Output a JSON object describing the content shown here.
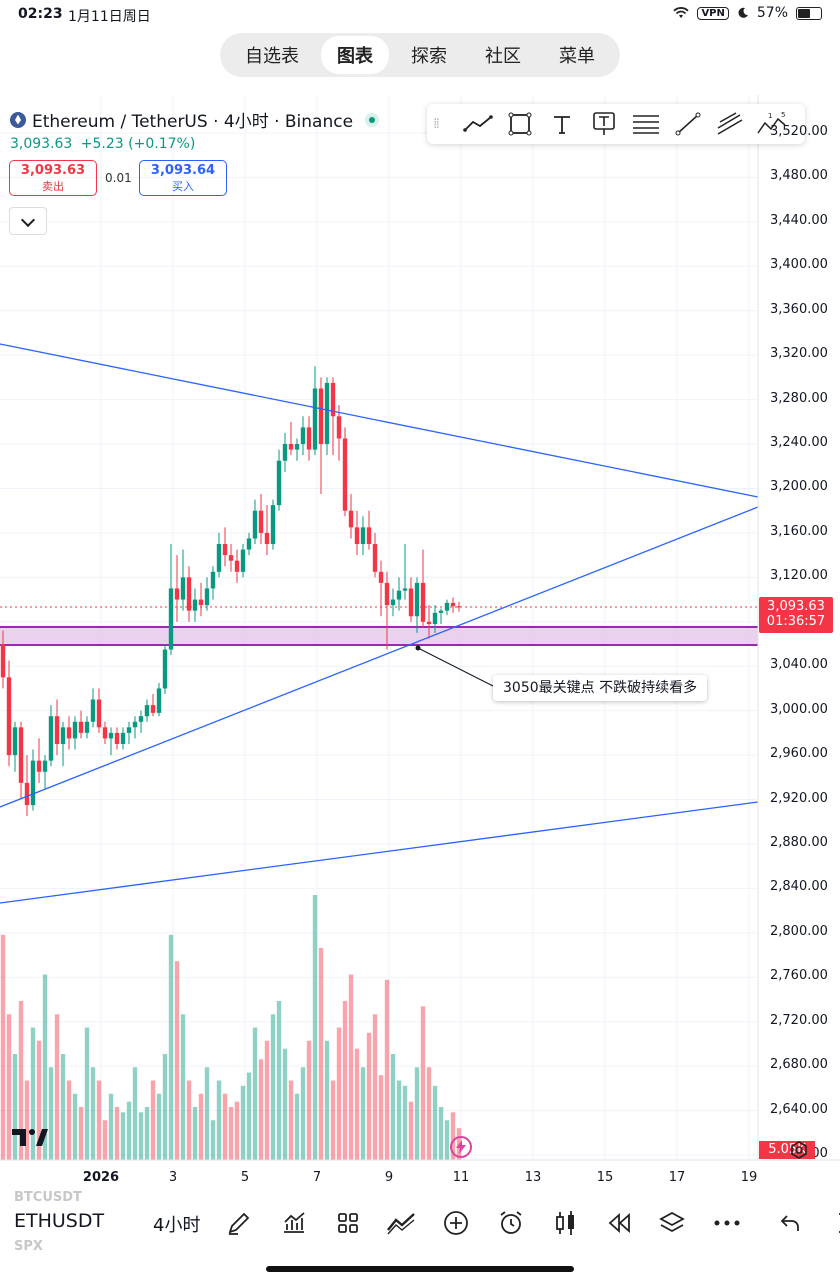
{
  "status_bar": {
    "time": "02:23",
    "date": "1月11日周日",
    "vpn": "VPN",
    "battery": "57%"
  },
  "nav_tabs": [
    "自选表",
    "图表",
    "探索",
    "社区",
    "菜单"
  ],
  "symbol": {
    "title": "Ethereum / TetherUS · 4小时 · Binance",
    "last_price": "3,093.63",
    "change": "+5.23 (+0.17%)",
    "sell_price": "3,093.63",
    "sell_label": "卖出",
    "spread": "0.01",
    "buy_price": "3,093.64",
    "buy_label": "买入"
  },
  "drawing_tools": [
    "trend-line-icon",
    "rectangle-icon",
    "text-icon",
    "note-icon",
    "horizontal-lines-icon",
    "ray-icon",
    "parallel-channel-icon",
    "elliott-wave-icon"
  ],
  "price_axis": {
    "labels": [
      "3,520.00",
      "3,480.00",
      "3,440.00",
      "3,400.00",
      "3,360.00",
      "3,320.00",
      "3,280.00",
      "3,240.00",
      "3,200.00",
      "3,160.00",
      "3,120.00",
      "3,080.00",
      "3,040.00",
      "3,000.00",
      "2,960.00",
      "2,920.00",
      "2,880.00",
      "2,840.00",
      "2,800.00",
      "2,760.00",
      "2,720.00",
      "2,680.00",
      "2,640.00",
      "2,600.00"
    ],
    "current_price": "3,093.63",
    "countdown": "01:36:57",
    "volume": "5.05K"
  },
  "time_axis": [
    "2026",
    "3",
    "5",
    "7",
    "9",
    "11",
    "13",
    "15",
    "17",
    "19"
  ],
  "annotation": "3050最关键点 不跌破持续看多",
  "colors": {
    "up": "#089981",
    "down": "#f23645",
    "trendline": "#2962ff",
    "zone_fill": "#e1bee7",
    "zone_border": "#9c27b0"
  },
  "bottom_bar": {
    "symbol": "ETHUSDT",
    "above": "BTCUSDT",
    "below": "SPX",
    "interval": "4小时"
  },
  "chart_data": {
    "type": "candlestick",
    "exchange": "Binance",
    "pair": "ETHUSDT",
    "interval": "4h",
    "current_price": 3093.63,
    "support_zone": [
      3056,
      3074
    ],
    "annotation_level": 3050,
    "ohlc": [
      [
        3060,
        3072,
        3020,
        3030
      ],
      [
        3030,
        3045,
        2950,
        2960
      ],
      [
        2960,
        2990,
        2945,
        2985
      ],
      [
        2985,
        2990,
        2920,
        2935
      ],
      [
        2935,
        2960,
        2905,
        2915
      ],
      [
        2915,
        2965,
        2910,
        2955
      ],
      [
        2955,
        2975,
        2935,
        2945
      ],
      [
        2945,
        2960,
        2930,
        2955
      ],
      [
        2955,
        3005,
        2950,
        2995
      ],
      [
        2995,
        3010,
        2960,
        2970
      ],
      [
        2970,
        2990,
        2950,
        2985
      ],
      [
        2985,
        2995,
        2965,
        2975
      ],
      [
        2975,
        2995,
        2965,
        2990
      ],
      [
        2990,
        3000,
        2975,
        2980
      ],
      [
        2980,
        2995,
        2975,
        2990
      ],
      [
        2990,
        3020,
        2985,
        3010
      ],
      [
        3010,
        3020,
        2980,
        2985
      ],
      [
        2985,
        2990,
        2970,
        2975
      ],
      [
        2975,
        2985,
        2960,
        2980
      ],
      [
        2980,
        2985,
        2965,
        2970
      ],
      [
        2970,
        2985,
        2965,
        2980
      ],
      [
        2980,
        2990,
        2970,
        2985
      ],
      [
        2985,
        2995,
        2975,
        2990
      ],
      [
        2990,
        3000,
        2980,
        2995
      ],
      [
        2995,
        3010,
        2990,
        3005
      ],
      [
        3005,
        3015,
        2995,
        2998
      ],
      [
        2998,
        3025,
        2995,
        3020
      ],
      [
        3020,
        3060,
        3015,
        3055
      ],
      [
        3055,
        3150,
        3050,
        3110
      ],
      [
        3110,
        3140,
        3080,
        3100
      ],
      [
        3100,
        3145,
        3090,
        3120
      ],
      [
        3120,
        3130,
        3080,
        3090
      ],
      [
        3090,
        3110,
        3080,
        3100
      ],
      [
        3100,
        3115,
        3085,
        3095
      ],
      [
        3095,
        3120,
        3090,
        3110
      ],
      [
        3110,
        3130,
        3100,
        3125
      ],
      [
        3125,
        3160,
        3120,
        3150
      ],
      [
        3150,
        3165,
        3130,
        3140
      ],
      [
        3140,
        3150,
        3125,
        3135
      ],
      [
        3135,
        3145,
        3115,
        3125
      ],
      [
        3125,
        3150,
        3120,
        3145
      ],
      [
        3145,
        3160,
        3140,
        3155
      ],
      [
        3155,
        3190,
        3150,
        3180
      ],
      [
        3180,
        3195,
        3150,
        3160
      ],
      [
        3160,
        3185,
        3140,
        3150
      ],
      [
        3150,
        3190,
        3145,
        3185
      ],
      [
        3185,
        3235,
        3180,
        3225
      ],
      [
        3225,
        3250,
        3215,
        3240
      ],
      [
        3240,
        3260,
        3230,
        3235
      ],
      [
        3235,
        3245,
        3225,
        3240
      ],
      [
        3240,
        3265,
        3230,
        3255
      ],
      [
        3255,
        3265,
        3225,
        3235
      ],
      [
        3235,
        3310,
        3230,
        3290
      ],
      [
        3290,
        3300,
        3195,
        3240
      ],
      [
        3240,
        3300,
        3230,
        3295
      ],
      [
        3295,
        3300,
        3230,
        3265
      ],
      [
        3265,
        3275,
        3225,
        3245
      ],
      [
        3245,
        3255,
        3175,
        3180
      ],
      [
        3180,
        3195,
        3155,
        3165
      ],
      [
        3165,
        3180,
        3140,
        3150
      ],
      [
        3150,
        3175,
        3140,
        3165
      ],
      [
        3165,
        3180,
        3145,
        3150
      ],
      [
        3150,
        3160,
        3120,
        3125
      ],
      [
        3125,
        3135,
        3085,
        3115
      ],
      [
        3115,
        3125,
        3055,
        3095
      ],
      [
        3095,
        3110,
        3085,
        3100
      ],
      [
        3100,
        3120,
        3090,
        3108
      ],
      [
        3108,
        3150,
        3100,
        3110
      ],
      [
        3110,
        3120,
        3080,
        3085
      ],
      [
        3085,
        3120,
        3070,
        3115
      ],
      [
        3115,
        3145,
        3075,
        3080
      ],
      [
        3080,
        3095,
        3065,
        3078
      ],
      [
        3078,
        3095,
        3070,
        3088
      ],
      [
        3088,
        3092,
        3078,
        3090
      ],
      [
        3090,
        3100,
        3086,
        3097
      ],
      [
        3097,
        3102,
        3088,
        3094
      ],
      [
        3094,
        3098,
        3089,
        3093.63
      ]
    ],
    "volume": [
      0.85,
      0.55,
      0.4,
      0.6,
      0.3,
      0.5,
      0.45,
      0.7,
      0.35,
      0.55,
      0.4,
      0.3,
      0.25,
      0.2,
      0.5,
      0.35,
      0.3,
      0.15,
      0.25,
      0.2,
      0.18,
      0.22,
      0.35,
      0.18,
      0.2,
      0.3,
      0.25,
      0.4,
      0.85,
      0.75,
      0.55,
      0.3,
      0.2,
      0.25,
      0.35,
      0.15,
      0.3,
      0.25,
      0.2,
      0.22,
      0.28,
      0.33,
      0.5,
      0.38,
      0.45,
      0.55,
      0.6,
      0.42,
      0.3,
      0.25,
      0.35,
      0.45,
      1.0,
      0.8,
      0.45,
      0.3,
      0.5,
      0.6,
      0.7,
      0.42,
      0.35,
      0.48,
      0.55,
      0.32,
      0.68,
      0.4,
      0.3,
      0.28,
      0.22,
      0.35,
      0.58,
      0.35,
      0.28,
      0.2,
      0.15,
      0.18,
      0.12
    ]
  }
}
